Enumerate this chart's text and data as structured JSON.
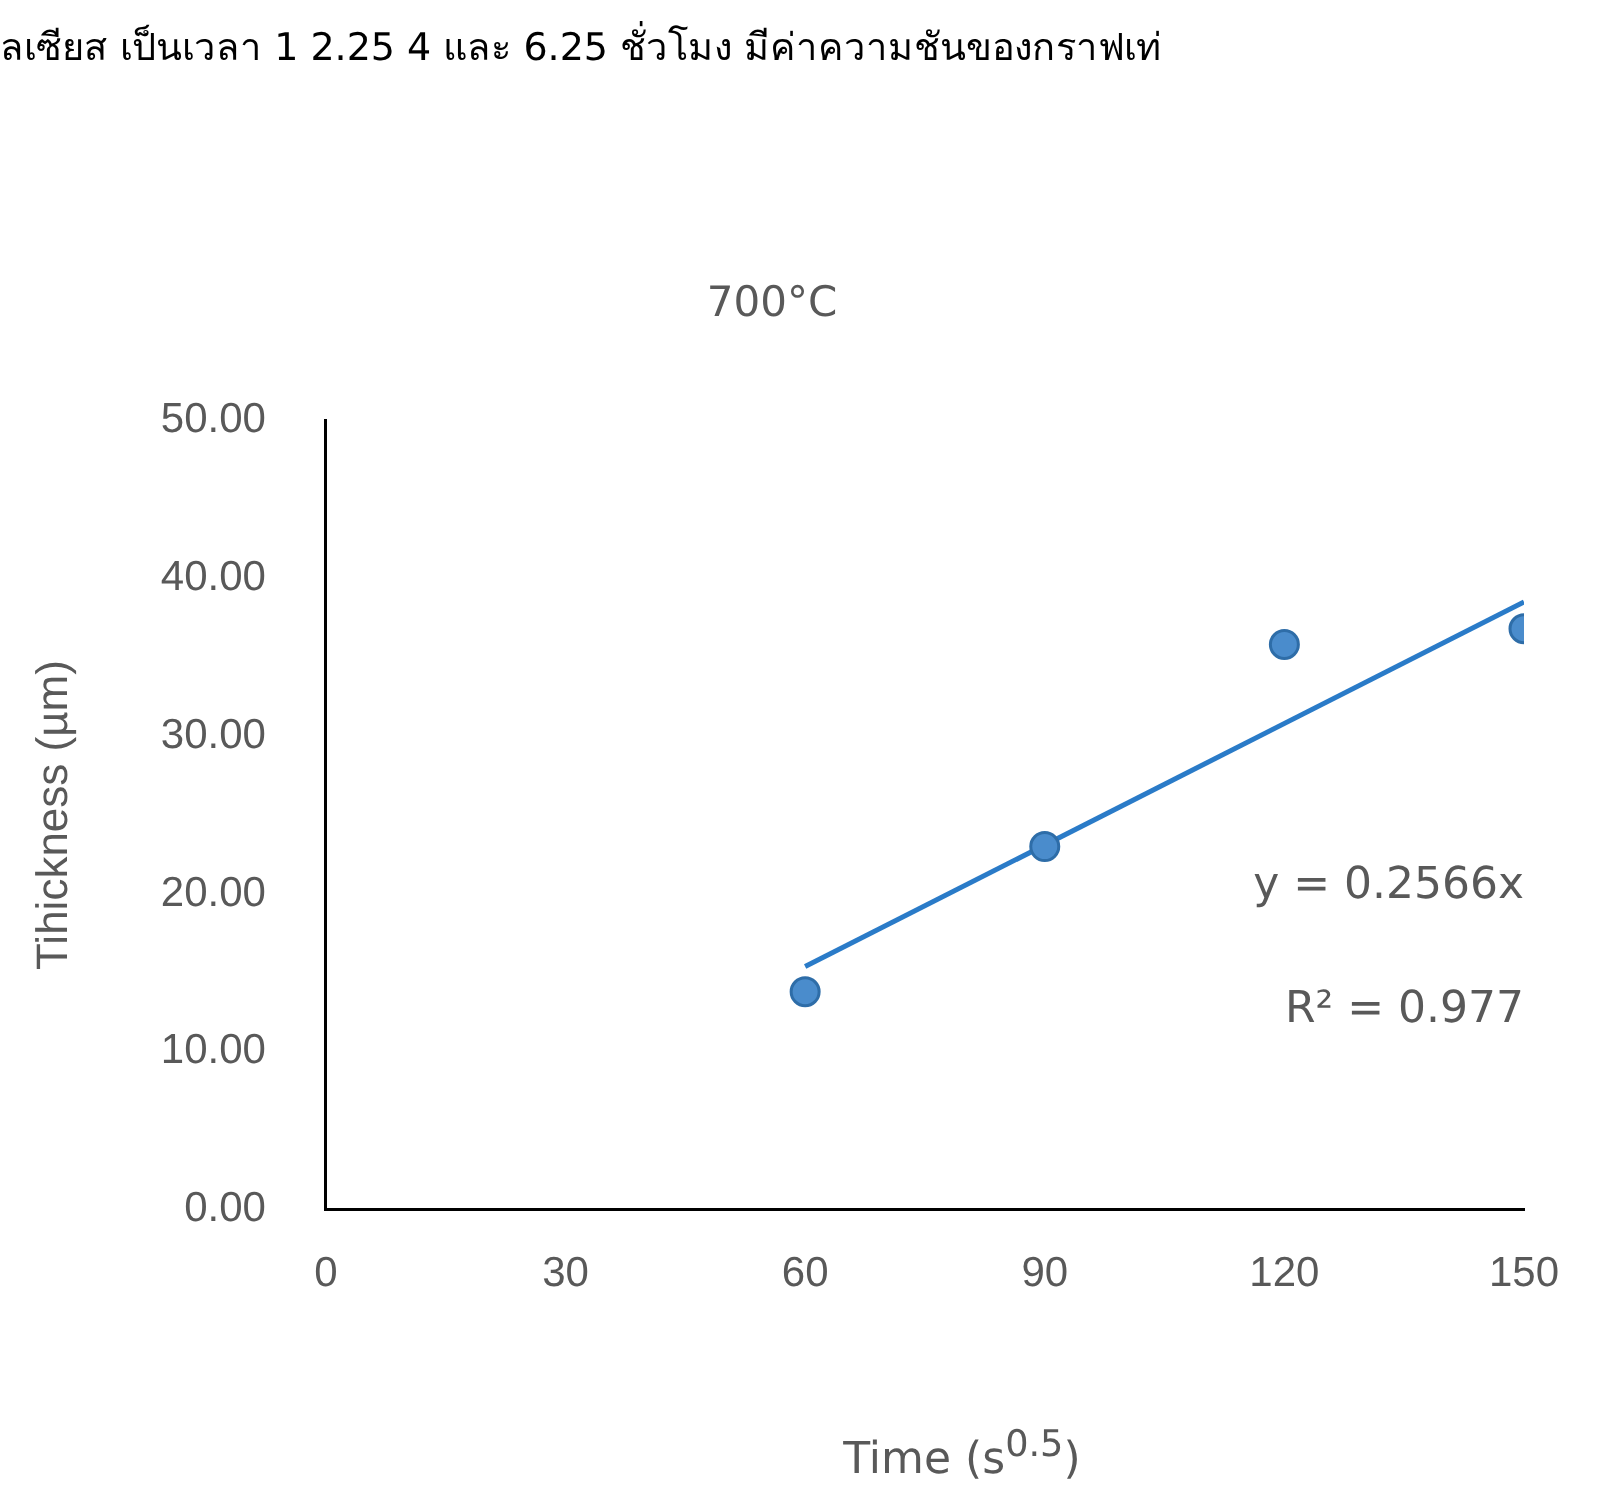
{
  "chart_data": {
    "type": "scatter",
    "title": "700°C",
    "xlabel": "Time (s$^{0.5}$)",
    "ylabel": "Tihickness (µm)",
    "annotations": [
      "ลเซียส เป็นเวลา 1 2.25 4 และ 6.25 ชั่วโมง มีค่าความชันของกราฟเท่",
      "y = 0.2566x",
      "R² = 0.977"
    ],
    "x": [
      60,
      90,
      120,
      150
    ],
    "series": [
      {
        "color": "#4a8ccc",
        "values": [
          13.8,
          23.0,
          35.8,
          36.8
        ]
      },
      {
        "type": "line",
        "color": "#2a7bc8",
        "marker": "none",
        "x": [
          60,
          150
        ],
        "values": [
          15.4,
          38.5
        ]
      }
    ],
    "xlim": [
      0,
      150
    ],
    "xticks": [
      0,
      30,
      60,
      90,
      120,
      150
    ],
    "ylim": [
      0,
      50
    ],
    "yticks": [
      {
        "value": 0,
        "label": "0.00"
      },
      {
        "value": 10,
        "label": "10.00"
      },
      {
        "value": 20,
        "label": "20.00"
      },
      {
        "value": 30,
        "label": "30.00"
      },
      {
        "value": 40,
        "label": "40.00"
      },
      {
        "value": 50,
        "label": "50.00"
      }
    ],
    "marker": "circle",
    "grid": false,
    "legend": false
  }
}
